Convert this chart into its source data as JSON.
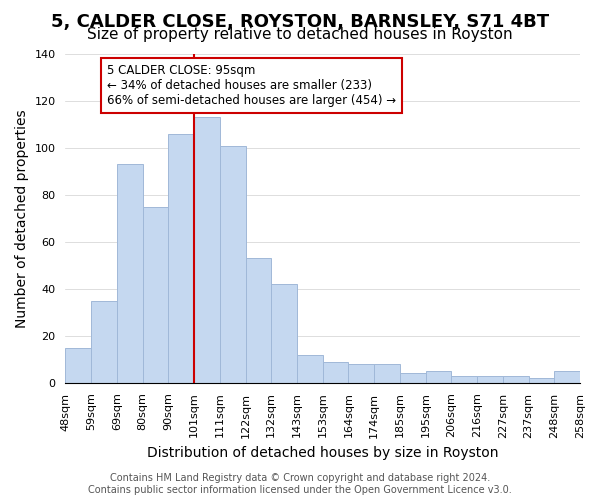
{
  "title": "5, CALDER CLOSE, ROYSTON, BARNSLEY, S71 4BT",
  "subtitle": "Size of property relative to detached houses in Royston",
  "xlabel": "Distribution of detached houses by size in Royston",
  "ylabel": "Number of detached properties",
  "bar_labels": [
    "48sqm",
    "59sqm",
    "69sqm",
    "80sqm",
    "90sqm",
    "101sqm",
    "111sqm",
    "122sqm",
    "132sqm",
    "143sqm",
    "153sqm",
    "164sqm",
    "174sqm",
    "185sqm",
    "195sqm",
    "206sqm",
    "216sqm",
    "227sqm",
    "237sqm",
    "248sqm",
    "258sqm"
  ],
  "bar_values": [
    15,
    35,
    93,
    75,
    106,
    113,
    101,
    53,
    42,
    12,
    9,
    8,
    8,
    4,
    5,
    3,
    3,
    3,
    2,
    5
  ],
  "bar_color": "#c5d8f0",
  "bar_edge_color": "#a0b8d8",
  "vline_color": "#cc0000",
  "vline_x_index": 4.5,
  "ylim": [
    0,
    140
  ],
  "annotation_title": "5 CALDER CLOSE: 95sqm",
  "annotation_line1": "← 34% of detached houses are smaller (233)",
  "annotation_line2": "66% of semi-detached houses are larger (454) →",
  "footer_line1": "Contains HM Land Registry data © Crown copyright and database right 2024.",
  "footer_line2": "Contains public sector information licensed under the Open Government Licence v3.0.",
  "title_fontsize": 13,
  "subtitle_fontsize": 11,
  "axis_label_fontsize": 10,
  "tick_fontsize": 8,
  "footer_fontsize": 7
}
